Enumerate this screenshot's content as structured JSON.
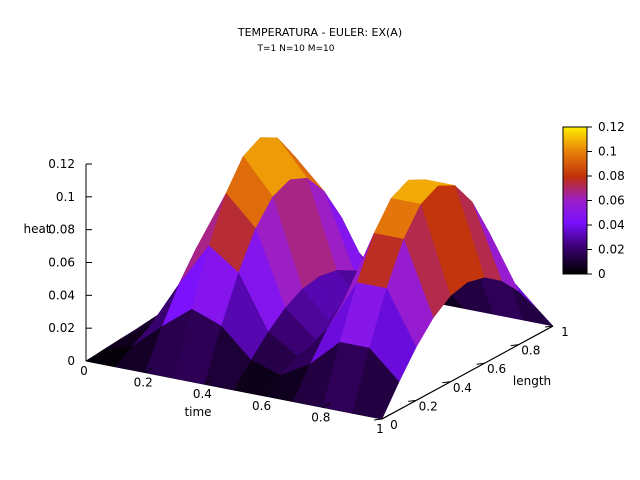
{
  "chart_data": {
    "type": "surface",
    "title": "TEMPERATURA - EULER: EX(A)",
    "subtitle": "T=1 N=10 M=10",
    "xlabel": "time",
    "ylabel": "length",
    "zlabel": "heat",
    "xlim": [
      0,
      1
    ],
    "ylim": [
      0,
      1
    ],
    "zlim": [
      0,
      0.12
    ],
    "x_ticks": [
      "0",
      "0.2",
      "0.4",
      "0.6",
      "0.8",
      "1"
    ],
    "y_ticks": [
      "0",
      "0.2",
      "0.4",
      "0.6",
      "0.8",
      "1"
    ],
    "z_ticks": [
      "0",
      "0.02",
      "0.04",
      "0.06",
      "0.08",
      "0.1",
      "0.12"
    ],
    "colorbar_ticks": [
      "0",
      "0.02",
      "0.04",
      "0.06",
      "0.08",
      "0.1",
      "0.12"
    ],
    "colorbar_range": [
      0,
      0.12
    ],
    "palette": "black-blue-purple-red-orange-yellow",
    "peak_height": 0.12,
    "peaks_along_x": [
      0.32,
      0.85
    ],
    "grid_points": 11
  }
}
